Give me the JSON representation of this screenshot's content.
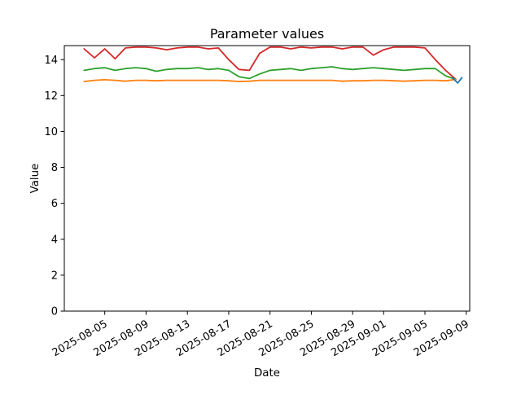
{
  "figure": {
    "background": "#ffffff",
    "axes_color": "#000000"
  },
  "chart_data": {
    "type": "line",
    "title": "Parameter values",
    "xlabel": "Date",
    "ylabel": "Value",
    "ylim": [
      0,
      14.78
    ],
    "xlim": [
      "2025-08-01T02:00",
      "2025-09-09T08:00"
    ],
    "grid": false,
    "legend_position": "none",
    "yticks": [
      0,
      2,
      4,
      6,
      8,
      10,
      12,
      14
    ],
    "xticks": [
      "2025-08-05",
      "2025-08-09",
      "2025-08-13",
      "2025-08-17",
      "2025-08-21",
      "2025-08-25",
      "2025-08-29",
      "2025-09-01",
      "2025-09-05",
      "2025-09-09"
    ],
    "x": [
      "2025-08-03",
      "2025-08-04",
      "2025-08-05",
      "2025-08-06",
      "2025-08-07",
      "2025-08-08",
      "2025-08-09",
      "2025-08-10",
      "2025-08-11",
      "2025-08-12",
      "2025-08-13",
      "2025-08-14",
      "2025-08-15",
      "2025-08-16",
      "2025-08-17",
      "2025-08-18",
      "2025-08-19",
      "2025-08-20",
      "2025-08-21",
      "2025-08-22",
      "2025-08-23",
      "2025-08-24",
      "2025-08-25",
      "2025-08-26",
      "2025-08-27",
      "2025-08-28",
      "2025-08-29",
      "2025-08-30",
      "2025-08-31",
      "2025-09-01",
      "2025-09-02",
      "2025-09-03",
      "2025-09-04",
      "2025-09-05",
      "2025-09-06",
      "2025-09-07",
      "2025-09-08"
    ],
    "series": [
      {
        "name": "red",
        "color": "#d62728",
        "values": [
          14.6,
          14.1,
          14.6,
          14.05,
          14.65,
          14.7,
          14.7,
          14.65,
          14.55,
          14.65,
          14.7,
          14.7,
          14.6,
          14.65,
          14.0,
          13.45,
          13.4,
          14.35,
          14.7,
          14.7,
          14.6,
          14.7,
          14.65,
          14.7,
          14.7,
          14.6,
          14.7,
          14.7,
          14.25,
          14.55,
          14.7,
          14.7,
          14.7,
          14.65,
          14.0,
          13.4,
          12.9
        ]
      },
      {
        "name": "green",
        "color": "#2ca02c",
        "values": [
          13.4,
          13.5,
          13.55,
          13.4,
          13.5,
          13.55,
          13.5,
          13.35,
          13.45,
          13.5,
          13.5,
          13.55,
          13.45,
          13.5,
          13.4,
          13.05,
          12.95,
          13.2,
          13.4,
          13.45,
          13.5,
          13.4,
          13.5,
          13.55,
          13.6,
          13.5,
          13.45,
          13.5,
          13.55,
          13.5,
          13.45,
          13.4,
          13.45,
          13.5,
          13.5,
          13.1,
          12.9
        ]
      },
      {
        "name": "orange",
        "color": "#ff7f0e",
        "values": [
          12.78,
          12.85,
          12.88,
          12.85,
          12.8,
          12.85,
          12.85,
          12.82,
          12.85,
          12.85,
          12.85,
          12.85,
          12.85,
          12.85,
          12.82,
          12.78,
          12.8,
          12.85,
          12.85,
          12.85,
          12.85,
          12.85,
          12.85,
          12.85,
          12.85,
          12.8,
          12.82,
          12.82,
          12.85,
          12.85,
          12.82,
          12.8,
          12.82,
          12.85,
          12.85,
          12.82,
          12.9
        ]
      },
      {
        "name": "blue",
        "color": "#1f77b4",
        "x": [
          "2025-09-07T16:00",
          "2025-09-08T04:00",
          "2025-09-08T14:00"
        ],
        "values": [
          12.98,
          12.7,
          13.0
        ]
      }
    ]
  }
}
